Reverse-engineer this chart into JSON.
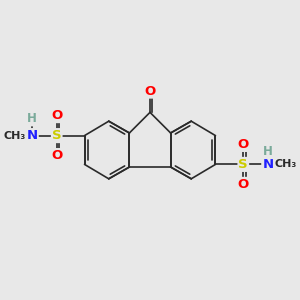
{
  "bg_color": "#e8e8e8",
  "bond_color": "#2a2a2a",
  "bond_width": 1.2,
  "figsize": [
    3.0,
    3.0
  ],
  "dpi": 100,
  "colors": {
    "O": "#ff0000",
    "S": "#cccc00",
    "N": "#2020ff",
    "H": "#7aaa9a",
    "C": "#2a2a2a"
  },
  "font_size": 9.5
}
